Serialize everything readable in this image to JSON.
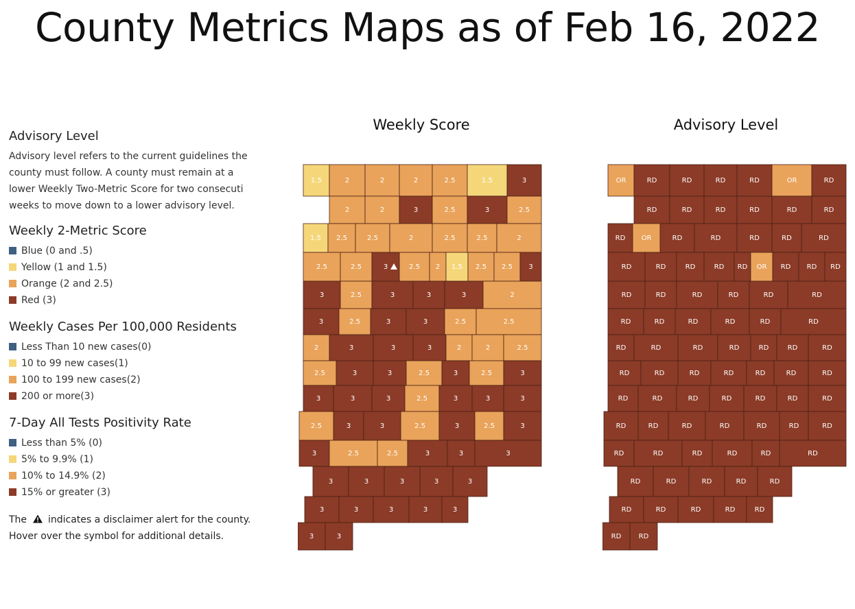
{
  "page_title": "County Metrics Maps as of Feb 16, 2022",
  "colors": {
    "blue": "#3f6080",
    "yellow": "#f5d77a",
    "orange": "#e9a35a",
    "red": "#8b3b27",
    "border": "#4a2016"
  },
  "legend": {
    "advisory_heading": "Advisory Level",
    "advisory_text": "Advisory level refers to the current guidelines the county must follow. A county must remain at a lower Weekly Two-Metric Score for two consecuti weeks to move down to a lower advisory level.",
    "score_heading": "Weekly 2-Metric Score",
    "score_items": [
      {
        "label": "Blue (0 and .5)",
        "color": "#3f6080"
      },
      {
        "label": "Yellow (1 and 1.5)",
        "color": "#f5d77a"
      },
      {
        "label": "Orange (2 and 2.5)",
        "color": "#e9a35a"
      },
      {
        "label": "Red (3)",
        "color": "#8b3b27"
      }
    ],
    "cases_heading": "Weekly Cases Per 100,000 Residents",
    "cases_items": [
      {
        "label": "Less Than 10 new cases(0)",
        "color": "#3f6080"
      },
      {
        "label": "10 to 99 new cases(1)",
        "color": "#f5d77a"
      },
      {
        "label": "100 to 199 new cases(2)",
        "color": "#e9a35a"
      },
      {
        "label": "200 or more(3)",
        "color": "#8b3b27"
      }
    ],
    "positivity_heading": "7-Day All Tests Positivity Rate",
    "positivity_items": [
      {
        "label": "Less than 5% (0)",
        "color": "#3f6080"
      },
      {
        "label": "5% to 9.9% (1)",
        "color": "#f5d77a"
      },
      {
        "label": "10% to 14.9% (2)",
        "color": "#e9a35a"
      },
      {
        "label": "15% or greater (3)",
        "color": "#8b3b27"
      }
    ],
    "disclaimer_prefix": "The",
    "disclaimer_suffix": "indicates a disclaimer alert for the county.",
    "disclaimer_line2": "Hover over the symbol for additional details."
  },
  "weekly_map": {
    "title": "Weekly Score",
    "counties": [
      {
        "v": "1.5",
        "c": "yellow"
      },
      {
        "v": "2",
        "c": "orange"
      },
      {
        "v": "2",
        "c": "orange"
      },
      {
        "v": "2",
        "c": "orange"
      },
      {
        "v": "2.5",
        "c": "orange"
      },
      {
        "v": "1.5",
        "c": "yellow"
      },
      {
        "v": "3",
        "c": "red"
      },
      {
        "v": "2",
        "c": "orange"
      },
      {
        "v": "2",
        "c": "orange"
      },
      {
        "v": "3",
        "c": "red"
      },
      {
        "v": "2.5",
        "c": "orange"
      },
      {
        "v": "3",
        "c": "red"
      },
      {
        "v": "2.5",
        "c": "orange"
      },
      {
        "v": "1.5",
        "c": "yellow"
      },
      {
        "v": "2.5",
        "c": "orange"
      },
      {
        "v": "2.5",
        "c": "orange"
      },
      {
        "v": "2",
        "c": "orange"
      },
      {
        "v": "2.5",
        "c": "orange"
      },
      {
        "v": "2.5",
        "c": "orange"
      },
      {
        "v": "2",
        "c": "orange"
      },
      {
        "v": "2.5",
        "c": "orange"
      },
      {
        "v": "2.5",
        "c": "orange"
      },
      {
        "v": "3",
        "c": "red",
        "warn": true
      },
      {
        "v": "2.5",
        "c": "orange"
      },
      {
        "v": "2",
        "c": "orange"
      },
      {
        "v": "1.5",
        "c": "yellow"
      },
      {
        "v": "2.5",
        "c": "orange"
      },
      {
        "v": "2.5",
        "c": "orange"
      },
      {
        "v": "3",
        "c": "red"
      },
      {
        "v": "3",
        "c": "red"
      },
      {
        "v": "2.5",
        "c": "orange"
      },
      {
        "v": "3",
        "c": "red"
      },
      {
        "v": "3",
        "c": "red"
      },
      {
        "v": "3",
        "c": "red"
      },
      {
        "v": "2",
        "c": "orange"
      },
      {
        "v": "3",
        "c": "red"
      },
      {
        "v": "2.5",
        "c": "orange"
      },
      {
        "v": "3",
        "c": "red"
      },
      {
        "v": "3",
        "c": "red"
      },
      {
        "v": "2.5",
        "c": "orange"
      },
      {
        "v": "2.5",
        "c": "orange"
      },
      {
        "v": "2",
        "c": "orange"
      },
      {
        "v": "3",
        "c": "red"
      },
      {
        "v": "3",
        "c": "red"
      },
      {
        "v": "3",
        "c": "red"
      },
      {
        "v": "2",
        "c": "orange"
      },
      {
        "v": "2",
        "c": "orange"
      },
      {
        "v": "2.5",
        "c": "orange"
      },
      {
        "v": "2.5",
        "c": "orange"
      },
      {
        "v": "3",
        "c": "red"
      },
      {
        "v": "3",
        "c": "red"
      },
      {
        "v": "2.5",
        "c": "orange"
      },
      {
        "v": "3",
        "c": "red"
      },
      {
        "v": "2.5",
        "c": "orange"
      },
      {
        "v": "3",
        "c": "red"
      },
      {
        "v": "3",
        "c": "red"
      },
      {
        "v": "3",
        "c": "red"
      },
      {
        "v": "3",
        "c": "red"
      },
      {
        "v": "2.5",
        "c": "orange"
      },
      {
        "v": "3",
        "c": "red"
      },
      {
        "v": "3",
        "c": "red"
      },
      {
        "v": "3",
        "c": "red"
      },
      {
        "v": "2.5",
        "c": "orange"
      },
      {
        "v": "3",
        "c": "red"
      },
      {
        "v": "3",
        "c": "red"
      },
      {
        "v": "2.5",
        "c": "orange"
      },
      {
        "v": "3",
        "c": "red"
      },
      {
        "v": "2.5",
        "c": "orange"
      },
      {
        "v": "3",
        "c": "red"
      },
      {
        "v": "3",
        "c": "red"
      },
      {
        "v": "2.5",
        "c": "orange"
      },
      {
        "v": "2.5",
        "c": "orange"
      },
      {
        "v": "3",
        "c": "red"
      },
      {
        "v": "3",
        "c": "red"
      },
      {
        "v": "3",
        "c": "red"
      },
      {
        "v": "3",
        "c": "red"
      },
      {
        "v": "3",
        "c": "red"
      },
      {
        "v": "3",
        "c": "red"
      },
      {
        "v": "3",
        "c": "red"
      },
      {
        "v": "3",
        "c": "red"
      },
      {
        "v": "3",
        "c": "red"
      },
      {
        "v": "3",
        "c": "red"
      },
      {
        "v": "3",
        "c": "red"
      },
      {
        "v": "3",
        "c": "red"
      },
      {
        "v": "3",
        "c": "red"
      },
      {
        "v": "3",
        "c": "red"
      },
      {
        "v": "3",
        "c": "red"
      }
    ]
  },
  "advisory_map": {
    "title": "Advisory Level",
    "counties": [
      {
        "v": "OR",
        "c": "orange"
      },
      {
        "v": "RD",
        "c": "red"
      },
      {
        "v": "RD",
        "c": "red"
      },
      {
        "v": "RD",
        "c": "red"
      },
      {
        "v": "RD",
        "c": "red"
      },
      {
        "v": "OR",
        "c": "orange"
      },
      {
        "v": "RD",
        "c": "red"
      },
      {
        "v": "RD",
        "c": "red"
      },
      {
        "v": "RD",
        "c": "red"
      },
      {
        "v": "RD",
        "c": "red"
      },
      {
        "v": "RD",
        "c": "red"
      },
      {
        "v": "RD",
        "c": "red"
      },
      {
        "v": "RD",
        "c": "red"
      },
      {
        "v": "RD",
        "c": "red"
      },
      {
        "v": "OR",
        "c": "orange"
      },
      {
        "v": "RD",
        "c": "red"
      },
      {
        "v": "RD",
        "c": "red"
      },
      {
        "v": "RD",
        "c": "red"
      },
      {
        "v": "RD",
        "c": "red"
      },
      {
        "v": "RD",
        "c": "red"
      },
      {
        "v": "RD",
        "c": "red"
      },
      {
        "v": "RD",
        "c": "red"
      },
      {
        "v": "RD",
        "c": "red"
      },
      {
        "v": "RD",
        "c": "red"
      },
      {
        "v": "RD",
        "c": "red"
      },
      {
        "v": "OR",
        "c": "orange"
      },
      {
        "v": "RD",
        "c": "red"
      },
      {
        "v": "RD",
        "c": "red"
      },
      {
        "v": "RD",
        "c": "red"
      },
      {
        "v": "RD",
        "c": "red"
      },
      {
        "v": "RD",
        "c": "red"
      },
      {
        "v": "RD",
        "c": "red"
      },
      {
        "v": "RD",
        "c": "red"
      },
      {
        "v": "RD",
        "c": "red"
      },
      {
        "v": "RD",
        "c": "red"
      },
      {
        "v": "RD",
        "c": "red"
      },
      {
        "v": "RD",
        "c": "red"
      },
      {
        "v": "RD",
        "c": "red"
      },
      {
        "v": "RD",
        "c": "red"
      },
      {
        "v": "RD",
        "c": "red"
      },
      {
        "v": "RD",
        "c": "red"
      },
      {
        "v": "RD",
        "c": "red"
      },
      {
        "v": "RD",
        "c": "red"
      },
      {
        "v": "RD",
        "c": "red"
      },
      {
        "v": "RD",
        "c": "red"
      },
      {
        "v": "RD",
        "c": "red"
      },
      {
        "v": "RD",
        "c": "red"
      },
      {
        "v": "RD",
        "c": "red"
      },
      {
        "v": "RD",
        "c": "red"
      },
      {
        "v": "RD",
        "c": "red"
      },
      {
        "v": "RD",
        "c": "red"
      },
      {
        "v": "RD",
        "c": "red"
      },
      {
        "v": "RD",
        "c": "red"
      },
      {
        "v": "RD",
        "c": "red"
      },
      {
        "v": "RD",
        "c": "red"
      },
      {
        "v": "RD",
        "c": "red"
      },
      {
        "v": "RD",
        "c": "red"
      },
      {
        "v": "RD",
        "c": "red"
      },
      {
        "v": "RD",
        "c": "red"
      },
      {
        "v": "RD",
        "c": "red"
      },
      {
        "v": "RD",
        "c": "red"
      },
      {
        "v": "RD",
        "c": "red"
      },
      {
        "v": "RD",
        "c": "red"
      },
      {
        "v": "RD",
        "c": "red"
      },
      {
        "v": "RD",
        "c": "red"
      },
      {
        "v": "RD",
        "c": "red"
      },
      {
        "v": "RD",
        "c": "red"
      },
      {
        "v": "RD",
        "c": "red"
      },
      {
        "v": "RD",
        "c": "red"
      },
      {
        "v": "RD",
        "c": "red"
      },
      {
        "v": "RD",
        "c": "red"
      },
      {
        "v": "RD",
        "c": "red"
      },
      {
        "v": "RD",
        "c": "red"
      },
      {
        "v": "RD",
        "c": "red"
      },
      {
        "v": "RD",
        "c": "red"
      },
      {
        "v": "RD",
        "c": "red"
      },
      {
        "v": "RD",
        "c": "red"
      },
      {
        "v": "RD",
        "c": "red"
      },
      {
        "v": "RD",
        "c": "red"
      },
      {
        "v": "RD",
        "c": "red"
      },
      {
        "v": "RD",
        "c": "red"
      },
      {
        "v": "RD",
        "c": "red"
      },
      {
        "v": "RD",
        "c": "red"
      },
      {
        "v": "RD",
        "c": "red"
      },
      {
        "v": "RD",
        "c": "red"
      },
      {
        "v": "RD",
        "c": "red"
      },
      {
        "v": "RD",
        "c": "red"
      }
    ]
  }
}
